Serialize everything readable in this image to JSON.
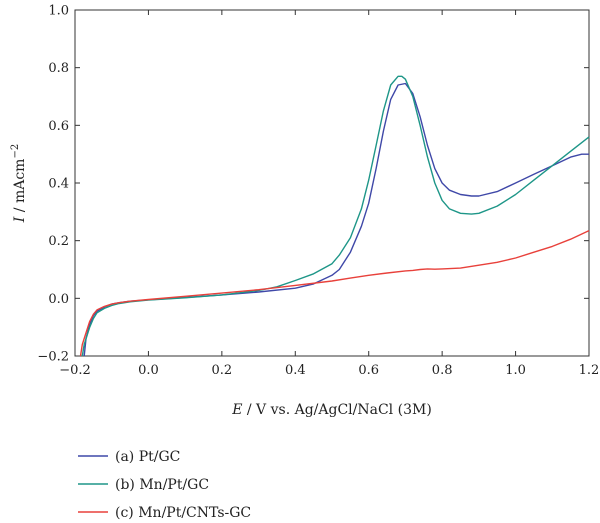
{
  "chart_data": {
    "type": "line",
    "xlabel": "E / V vs. Ag/AgCl/NaCl (3M)",
    "xlabel_var": "E",
    "xlabel_rest": " / V vs. Ag/AgCl/NaCl (3M)",
    "ylabel": "I / mAcm⁻²",
    "ylabel_var": "I",
    "ylabel_rest": " / mAcm",
    "ylabel_sup": "−2",
    "xlim": [
      -0.2,
      1.2
    ],
    "ylim": [
      -0.2,
      1.0
    ],
    "xticks": [
      -0.2,
      0.0,
      0.2,
      0.4,
      0.6,
      0.8,
      1.0,
      1.2
    ],
    "xtick_labels": [
      "−0.2",
      "0.0",
      "0.2",
      "0.4",
      "0.6",
      "0.8",
      "1.0",
      "1.2"
    ],
    "yticks": [
      -0.2,
      0.0,
      0.2,
      0.4,
      0.6,
      0.8,
      1.0
    ],
    "ytick_labels": [
      "−0.2",
      "0.0",
      "0.2",
      "0.4",
      "0.6",
      "0.8",
      "1.0"
    ],
    "grid": false,
    "legend": "bottom-left, below plot",
    "series": [
      {
        "name": "(a) Pt/GC",
        "color": "#3f48a8",
        "x": [
          -0.175,
          -0.17,
          -0.16,
          -0.15,
          -0.14,
          -0.12,
          -0.1,
          -0.08,
          -0.05,
          0.0,
          0.1,
          0.2,
          0.3,
          0.4,
          0.45,
          0.5,
          0.52,
          0.55,
          0.58,
          0.6,
          0.62,
          0.64,
          0.66,
          0.68,
          0.7,
          0.72,
          0.74,
          0.76,
          0.78,
          0.8,
          0.82,
          0.85,
          0.88,
          0.9,
          0.95,
          1.0,
          1.05,
          1.1,
          1.15,
          1.18,
          1.2
        ],
        "y": [
          -0.2,
          -0.14,
          -0.09,
          -0.06,
          -0.045,
          -0.03,
          -0.02,
          -0.015,
          -0.01,
          -0.005,
          0.003,
          0.012,
          0.022,
          0.035,
          0.05,
          0.08,
          0.1,
          0.16,
          0.25,
          0.33,
          0.45,
          0.58,
          0.69,
          0.74,
          0.745,
          0.71,
          0.63,
          0.53,
          0.45,
          0.4,
          0.375,
          0.36,
          0.355,
          0.355,
          0.37,
          0.4,
          0.43,
          0.46,
          0.49,
          0.5,
          0.5
        ]
      },
      {
        "name": "(b) Mn/Pt/GC",
        "color": "#1e9688",
        "x": [
          -0.18,
          -0.175,
          -0.16,
          -0.15,
          -0.14,
          -0.12,
          -0.1,
          -0.08,
          -0.05,
          0.0,
          0.1,
          0.2,
          0.3,
          0.35,
          0.4,
          0.45,
          0.5,
          0.52,
          0.55,
          0.58,
          0.6,
          0.62,
          0.64,
          0.66,
          0.68,
          0.69,
          0.7,
          0.72,
          0.74,
          0.76,
          0.78,
          0.8,
          0.82,
          0.85,
          0.88,
          0.9,
          0.95,
          1.0,
          1.05,
          1.1,
          1.15,
          1.2
        ],
        "y": [
          -0.2,
          -0.16,
          -0.1,
          -0.07,
          -0.05,
          -0.035,
          -0.025,
          -0.018,
          -0.012,
          -0.006,
          0.002,
          0.012,
          0.027,
          0.04,
          0.062,
          0.085,
          0.12,
          0.15,
          0.21,
          0.31,
          0.41,
          0.53,
          0.65,
          0.74,
          0.77,
          0.77,
          0.76,
          0.7,
          0.6,
          0.49,
          0.4,
          0.34,
          0.31,
          0.295,
          0.292,
          0.295,
          0.32,
          0.36,
          0.41,
          0.46,
          0.51,
          0.56
        ]
      },
      {
        "name": "(c) Mn/Pt/CNTs-GC",
        "color": "#e8413b",
        "x": [
          -0.185,
          -0.18,
          -0.17,
          -0.16,
          -0.15,
          -0.14,
          -0.12,
          -0.1,
          -0.08,
          -0.05,
          0.0,
          0.1,
          0.2,
          0.3,
          0.4,
          0.5,
          0.55,
          0.6,
          0.65,
          0.7,
          0.72,
          0.74,
          0.76,
          0.78,
          0.8,
          0.85,
          0.9,
          0.95,
          1.0,
          1.05,
          1.1,
          1.15,
          1.2
        ],
        "y": [
          -0.2,
          -0.16,
          -0.12,
          -0.08,
          -0.055,
          -0.04,
          -0.028,
          -0.02,
          -0.015,
          -0.01,
          -0.004,
          0.007,
          0.018,
          0.03,
          0.045,
          0.06,
          0.07,
          0.08,
          0.088,
          0.095,
          0.097,
          0.1,
          0.102,
          0.101,
          0.102,
          0.105,
          0.115,
          0.125,
          0.14,
          0.16,
          0.18,
          0.205,
          0.235
        ]
      }
    ]
  }
}
